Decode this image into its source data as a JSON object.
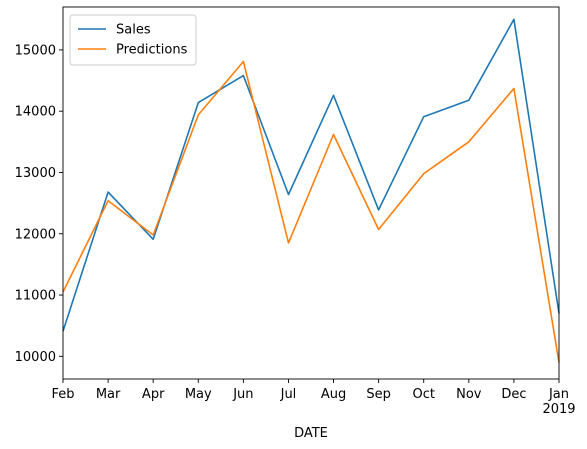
{
  "chart_data": {
    "type": "line",
    "title": "",
    "xlabel": "DATE",
    "ylabel": "",
    "categories": [
      "Feb",
      "Mar",
      "Apr",
      "May",
      "Jun",
      "Jul",
      "Aug",
      "Sep",
      "Oct",
      "Nov",
      "Dec",
      "Jan"
    ],
    "x_sublabels": {
      "Jan": "2019"
    },
    "yticks": [
      10000,
      11000,
      12000,
      13000,
      14000,
      15000
    ],
    "ylim": [
      9630,
      15700
    ],
    "grid": false,
    "legend_position": "top-left",
    "series": [
      {
        "name": "Sales",
        "color": "#1f77b4",
        "values": [
          10410,
          12680,
          11910,
          14140,
          14580,
          12640,
          14260,
          12390,
          13910,
          14180,
          15500,
          10700
        ]
      },
      {
        "name": "Predictions",
        "color": "#ff7f0e",
        "values": [
          11050,
          12540,
          11980,
          13940,
          14810,
          11850,
          13620,
          12070,
          12980,
          13500,
          14370,
          9900
        ]
      }
    ]
  }
}
